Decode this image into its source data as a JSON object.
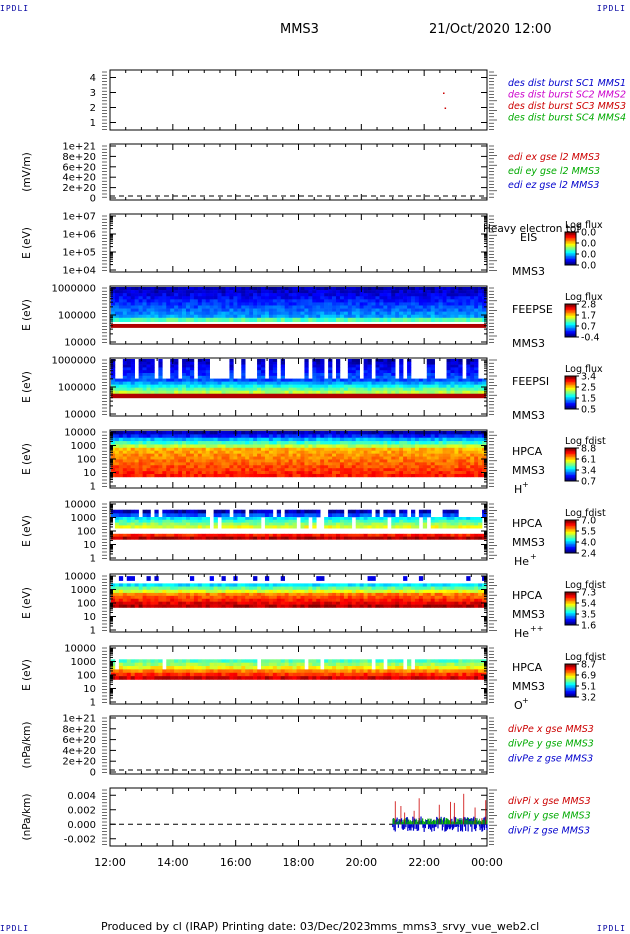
{
  "header": {
    "corner_label": "IPDLI",
    "spacecraft": "MMS3",
    "date_time": "21/Oct/2020 12:00"
  },
  "footer": {
    "produced_by": "Produced by cl (IRAP)",
    "printing_date": "Printing date: 03/Dec/2023",
    "script_name": "mms_mms3_srvy_vue_web2.cl"
  },
  "colors": {
    "mms1": "#0000cc",
    "mms2": "#cc00cc",
    "mms3": "#cc0000",
    "mms4": "#00aa00",
    "x": "#cc0000",
    "y": "#00aa00",
    "z": "#0000cc"
  },
  "chart_data": [
    {
      "id": "burst",
      "type": "scatter",
      "ylim": [
        0.5,
        4.5
      ],
      "yticks": [
        "1",
        "2",
        "3",
        "4"
      ],
      "series": [
        {
          "name": "des dist burst SC1 MMS1",
          "color": "#0000cc"
        },
        {
          "name": "des dist burst SC2 MMS2",
          "color": "#cc00cc"
        },
        {
          "name": "des dist burst SC3 MMS3",
          "color": "#cc0000",
          "points": [
            [
              22.6,
              3.0
            ],
            [
              22.65,
              2.0
            ]
          ]
        },
        {
          "name": "des dist burst SC4 MMS4",
          "color": "#00aa00"
        }
      ]
    },
    {
      "id": "edi",
      "type": "line",
      "ylabel": "(mV/m)",
      "yticks": [
        "0",
        "2e+20",
        "4e+20",
        "6e+20",
        "8e+20",
        "1e+21"
      ],
      "series": [
        {
          "name": "edi ex gse l2 MMS3",
          "color": "#cc0000"
        },
        {
          "name": "edi ey gse l2 MMS3",
          "color": "#00aa00"
        },
        {
          "name": "edi ez gse l2 MMS3",
          "color": "#0000cc"
        }
      ]
    },
    {
      "id": "eis",
      "type": "heatmap",
      "ylabel": "E (eV)",
      "yticks": [
        "1e+04",
        "1e+05",
        "1e+06",
        "1e+07"
      ],
      "instrument": "EIS",
      "spacecraft": "MMS3",
      "overlay_text": "Heavy electron tof",
      "colorbar": {
        "title": "Log flux",
        "ticks": [
          "0.0",
          "0.0",
          "0.0",
          "0.0"
        ]
      }
    },
    {
      "id": "feepse",
      "type": "heatmap",
      "ylabel": "E (eV)",
      "yticks": [
        "10000",
        "100000",
        "1000000"
      ],
      "instrument": "FEEPSE",
      "spacecraft": "MMS3",
      "colorbar": {
        "title": "Log flux",
        "ticks": [
          "2.8",
          "1.7",
          "0.7",
          "-0.4"
        ]
      }
    },
    {
      "id": "feepsi",
      "type": "heatmap",
      "ylabel": "E (eV)",
      "yticks": [
        "10000",
        "100000",
        "1000000"
      ],
      "instrument": "FEEPSI",
      "spacecraft": "MMS3",
      "colorbar": {
        "title": "Log flux",
        "ticks": [
          "3.4",
          "2.5",
          "1.5",
          "0.5"
        ]
      }
    },
    {
      "id": "hpca_h",
      "type": "heatmap",
      "ylabel": "E (eV)",
      "yticks": [
        "1",
        "10",
        "100",
        "1000",
        "10000"
      ],
      "instrument": "HPCA",
      "spacecraft": "MMS3",
      "species": "H",
      "charge": "+",
      "colorbar": {
        "title": "Log fdist",
        "ticks": [
          "8.8",
          "6.1",
          "3.4",
          "0.7"
        ]
      }
    },
    {
      "id": "hpca_he",
      "type": "heatmap",
      "ylabel": "E (eV)",
      "yticks": [
        "1",
        "10",
        "100",
        "1000",
        "10000"
      ],
      "instrument": "HPCA",
      "spacecraft": "MMS3",
      "species": "He",
      "charge": "+",
      "colorbar": {
        "title": "Log fdist",
        "ticks": [
          "7.0",
          "5.5",
          "4.0",
          "2.4"
        ]
      }
    },
    {
      "id": "hpca_he2",
      "type": "heatmap",
      "ylabel": "E (eV)",
      "yticks": [
        "1",
        "10",
        "100",
        "1000",
        "10000"
      ],
      "instrument": "HPCA",
      "spacecraft": "MMS3",
      "species": "He",
      "charge": "++",
      "colorbar": {
        "title": "Log fdist",
        "ticks": [
          "7.3",
          "5.4",
          "3.5",
          "1.6"
        ]
      }
    },
    {
      "id": "hpca_o",
      "type": "heatmap",
      "ylabel": "E (eV)",
      "yticks": [
        "1",
        "10",
        "100",
        "1000",
        "10000"
      ],
      "instrument": "HPCA",
      "spacecraft": "MMS3",
      "species": "O",
      "charge": "+",
      "colorbar": {
        "title": "Log fdist",
        "ticks": [
          "8.7",
          "6.9",
          "5.1",
          "3.2"
        ]
      }
    },
    {
      "id": "divpe",
      "type": "line",
      "ylabel": "(nPa/km)",
      "yticks": [
        "0",
        "2e+20",
        "4e+20",
        "6e+20",
        "8e+20",
        "1e+21"
      ],
      "series": [
        {
          "name": "divPe x gse MMS3",
          "color": "#cc0000"
        },
        {
          "name": "divPe y gse MMS3",
          "color": "#00aa00"
        },
        {
          "name": "divPe z gse MMS3",
          "color": "#0000cc"
        }
      ]
    },
    {
      "id": "divpi",
      "type": "line",
      "ylabel": "(nPa/km)",
      "ylim": [
        -0.003,
        0.005
      ],
      "yticks": [
        "-0.002",
        "0.000",
        "0.002",
        "0.004"
      ],
      "data_start_hour": 21.0,
      "series": [
        {
          "name": "divPi x gse MMS3",
          "color": "#cc0000"
        },
        {
          "name": "divPi y gse MMS3",
          "color": "#00aa00"
        },
        {
          "name": "divPi z gse MMS3",
          "color": "#0000cc"
        }
      ]
    }
  ],
  "xaxis": {
    "xlim": [
      12,
      24
    ],
    "ticks": [
      "12:00",
      "14:00",
      "16:00",
      "18:00",
      "20:00",
      "22:00",
      "00:00"
    ]
  }
}
